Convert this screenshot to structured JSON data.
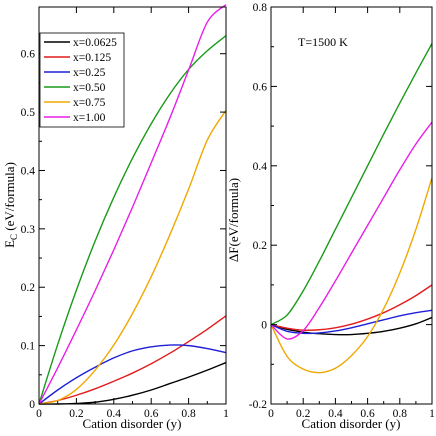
{
  "chart_data": [
    {
      "type": "line",
      "panel": "left",
      "xlabel": "Cation disorder (y)",
      "ylabel_main": "E",
      "ylabel_sub": "C",
      "ylabel_rest": " (eV/formula)",
      "xlim": [
        0,
        1
      ],
      "ylim": [
        0,
        0.68
      ],
      "xticks": [
        0,
        0.2,
        0.4,
        0.6,
        0.8,
        1
      ],
      "xtick_labels": [
        "0",
        "0.2",
        "0.4",
        "0.6",
        "0.8",
        "1"
      ],
      "yticks": [
        0,
        0.1,
        0.2,
        0.3,
        0.4,
        0.5,
        0.6
      ],
      "ytick_labels": [
        "0",
        "0.1",
        "0.2",
        "0.3",
        "0.4",
        "0.5",
        "0.6"
      ],
      "legend_position": "top-left",
      "grid": false,
      "x": [
        0,
        0.1,
        0.2,
        0.3,
        0.4,
        0.5,
        0.6,
        0.7,
        0.8,
        0.9,
        1.0
      ],
      "series": [
        {
          "name": "x=0.0625",
          "color": "#000000",
          "values": [
            0,
            0,
            0.001,
            0.003,
            0.008,
            0.015,
            0.024,
            0.035,
            0.046,
            0.058,
            0.071
          ]
        },
        {
          "name": "x=0.125",
          "color": "#e41a1c",
          "values": [
            0,
            0.006,
            0.015,
            0.026,
            0.039,
            0.053,
            0.069,
            0.087,
            0.107,
            0.128,
            0.151
          ]
        },
        {
          "name": "x=0.25",
          "color": "#1f1fd6",
          "values": [
            0,
            0.024,
            0.045,
            0.063,
            0.079,
            0.091,
            0.098,
            0.101,
            0.1,
            0.095,
            0.088
          ]
        },
        {
          "name": "x=0.50",
          "color": "#1a9a1a",
          "values": [
            0,
            0.102,
            0.195,
            0.279,
            0.354,
            0.421,
            0.48,
            0.531,
            0.573,
            0.605,
            0.631
          ]
        },
        {
          "name": "x=0.75",
          "color": "#f0a800",
          "values": [
            0,
            0.006,
            0.025,
            0.058,
            0.101,
            0.155,
            0.218,
            0.29,
            0.368,
            0.452,
            0.503
          ]
        },
        {
          "name": "x=1.00",
          "color": "#e81ee8",
          "values": [
            0,
            0.062,
            0.127,
            0.194,
            0.264,
            0.337,
            0.413,
            0.49,
            0.572,
            0.654,
            0.684
          ]
        }
      ]
    },
    {
      "type": "line",
      "panel": "right",
      "xlabel": "Cation disorder (y)",
      "ylabel": "ΔF(eV/formula)",
      "annotation": "T=1500 K",
      "xlim": [
        0,
        1
      ],
      "ylim": [
        -0.2,
        0.8
      ],
      "xticks": [
        0,
        0.2,
        0.4,
        0.6,
        0.8,
        1
      ],
      "xtick_labels": [
        "0",
        "0.2",
        "0.4",
        "0.6",
        "0.8",
        "1"
      ],
      "yticks": [
        -0.2,
        0,
        0.2,
        0.4,
        0.6,
        0.8
      ],
      "ytick_labels": [
        "-0.2",
        "0",
        "0.2",
        "0.4",
        "0.6",
        "0.8"
      ],
      "grid": false,
      "x": [
        0,
        0.1,
        0.2,
        0.3,
        0.4,
        0.5,
        0.6,
        0.7,
        0.8,
        0.9,
        1.0
      ],
      "series": [
        {
          "name": "x=0.0625",
          "color": "#000000",
          "values": [
            0,
            -0.012,
            -0.019,
            -0.023,
            -0.025,
            -0.025,
            -0.022,
            -0.017,
            -0.009,
            0.002,
            0.018
          ]
        },
        {
          "name": "x=0.125",
          "color": "#e41a1c",
          "values": [
            0,
            -0.009,
            -0.014,
            -0.013,
            -0.008,
            0.001,
            0.014,
            0.03,
            0.05,
            0.073,
            0.1
          ]
        },
        {
          "name": "x=0.25",
          "color": "#1f1fd6",
          "values": [
            0,
            -0.017,
            -0.022,
            -0.021,
            -0.016,
            -0.008,
            0.002,
            0.012,
            0.022,
            0.03,
            0.036
          ]
        },
        {
          "name": "x=0.50",
          "color": "#1a9a1a",
          "values": [
            0,
            0.024,
            0.085,
            0.16,
            0.24,
            0.32,
            0.4,
            0.48,
            0.558,
            0.634,
            0.708
          ]
        },
        {
          "name": "x=0.75",
          "color": "#f0a800",
          "values": [
            0,
            -0.08,
            -0.112,
            -0.121,
            -0.11,
            -0.078,
            -0.03,
            0.04,
            0.13,
            0.24,
            0.37
          ]
        },
        {
          "name": "x=1.00",
          "color": "#e81ee8",
          "values": [
            0,
            -0.036,
            -0.015,
            0.043,
            0.11,
            0.18,
            0.25,
            0.32,
            0.39,
            0.455,
            0.51
          ]
        }
      ]
    }
  ]
}
